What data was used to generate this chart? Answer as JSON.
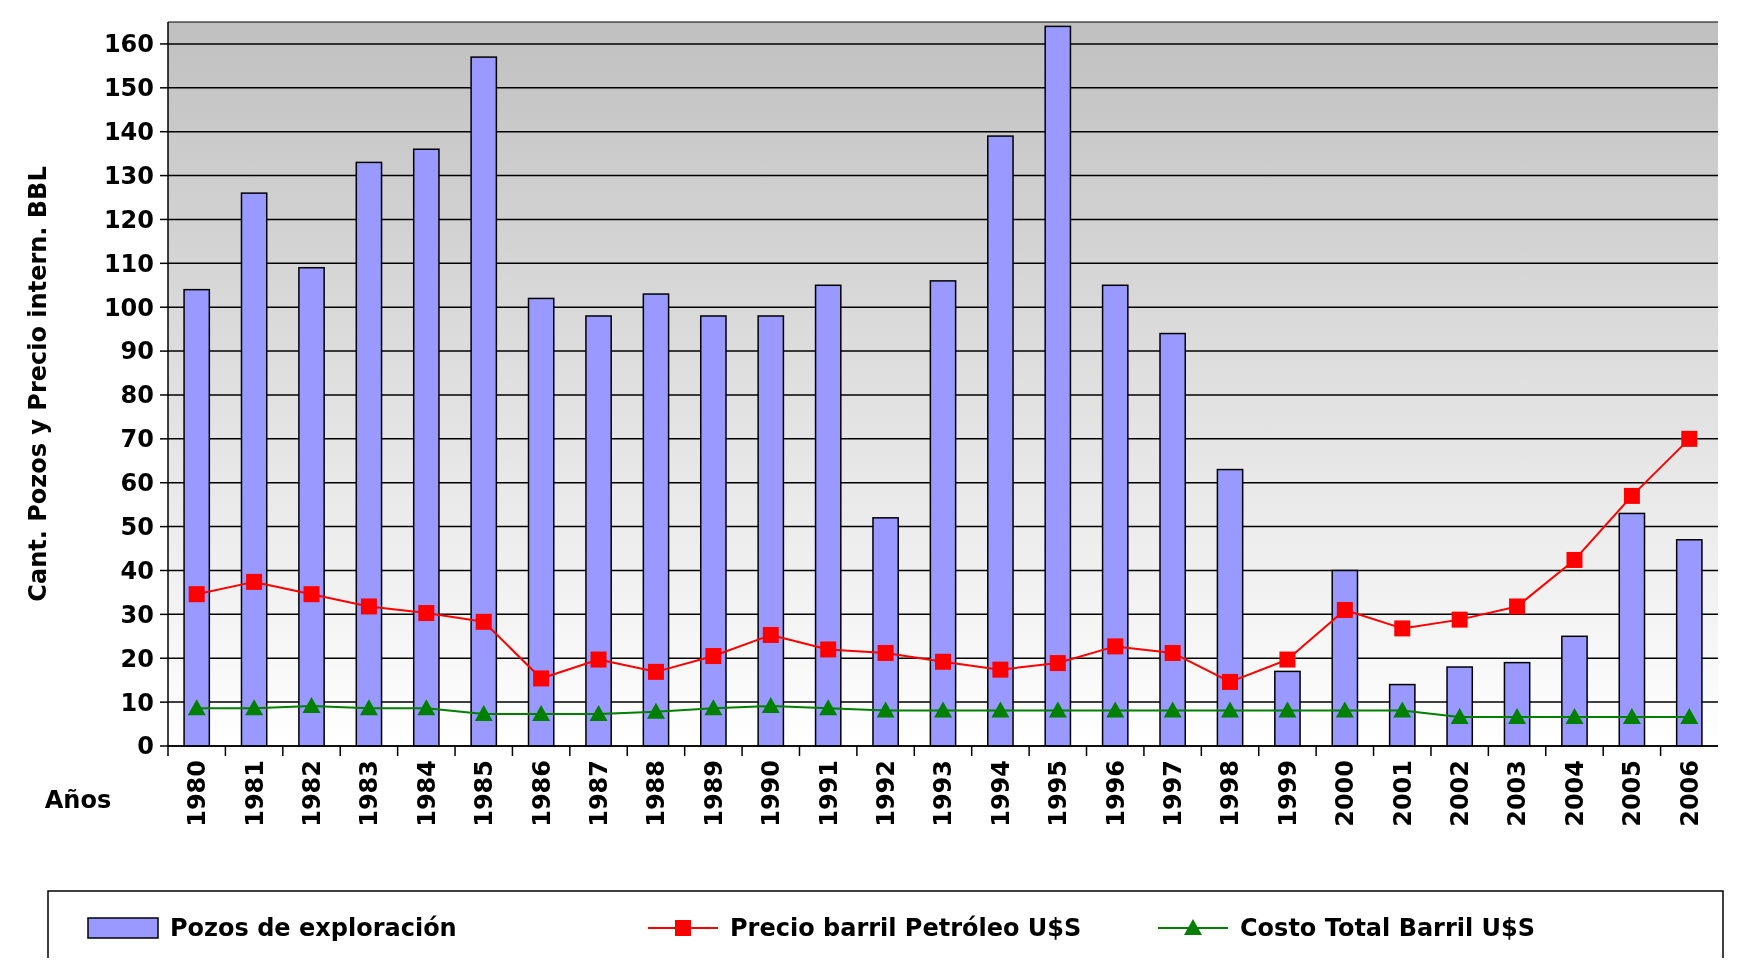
{
  "chart_data": {
    "type": "bar",
    "xlabel": "Años",
    "ylabel": "Cant. Pozos y Precio intern.  BBL",
    "categories": [
      "1980",
      "1981",
      "1982",
      "1983",
      "1984",
      "1985",
      "1986",
      "1987",
      "1988",
      "1989",
      "1990",
      "1991",
      "1992",
      "1993",
      "1994",
      "1995",
      "1996",
      "1997",
      "1998",
      "1999",
      "2000",
      "2001",
      "2002",
      "2003",
      "2004",
      "2005",
      "2006"
    ],
    "series": [
      {
        "name": "Pozos de exploración",
        "color": "#9999ff",
        "values": [
          104,
          126,
          109,
          133,
          136,
          157,
          102,
          98,
          103,
          98,
          98,
          105,
          52,
          106,
          139,
          164,
          105,
          94,
          63,
          17,
          40,
          14,
          18,
          19,
          25,
          53,
          47
        ]
      },
      {
        "name": "Precio barril Petróleo U$S",
        "type": "line",
        "color": "#ff0000",
        "marker": "square",
        "values": [
          34.6,
          37.4,
          34.6,
          31.8,
          30.3,
          28.3,
          15.4,
          19.7,
          16.9,
          20.5,
          25.3,
          22,
          21.2,
          19.2,
          17.4,
          18.9,
          22.7,
          21.2,
          14.6,
          19.7,
          31,
          26.8,
          28.8,
          31.8,
          42.4,
          57,
          70
        ]
      },
      {
        "name": "Costo Total Barril U$S",
        "type": "line",
        "color": "#008000",
        "marker": "triangle",
        "values": [
          8.6,
          8.6,
          9.1,
          8.6,
          8.6,
          7.3,
          7.3,
          7.3,
          7.8,
          8.6,
          9.1,
          8.6,
          8.1,
          8.1,
          8.1,
          8.1,
          8.1,
          8.1,
          8.1,
          8.1,
          8.1,
          8.1,
          6.6,
          6.6,
          6.6,
          6.6,
          6.6
        ]
      }
    ],
    "ylim": [
      0,
      165
    ],
    "yticks": [
      0,
      10,
      20,
      30,
      40,
      50,
      60,
      70,
      80,
      90,
      100,
      110,
      120,
      130,
      140,
      150,
      160
    ],
    "grid": "y",
    "legend": "bottom"
  }
}
